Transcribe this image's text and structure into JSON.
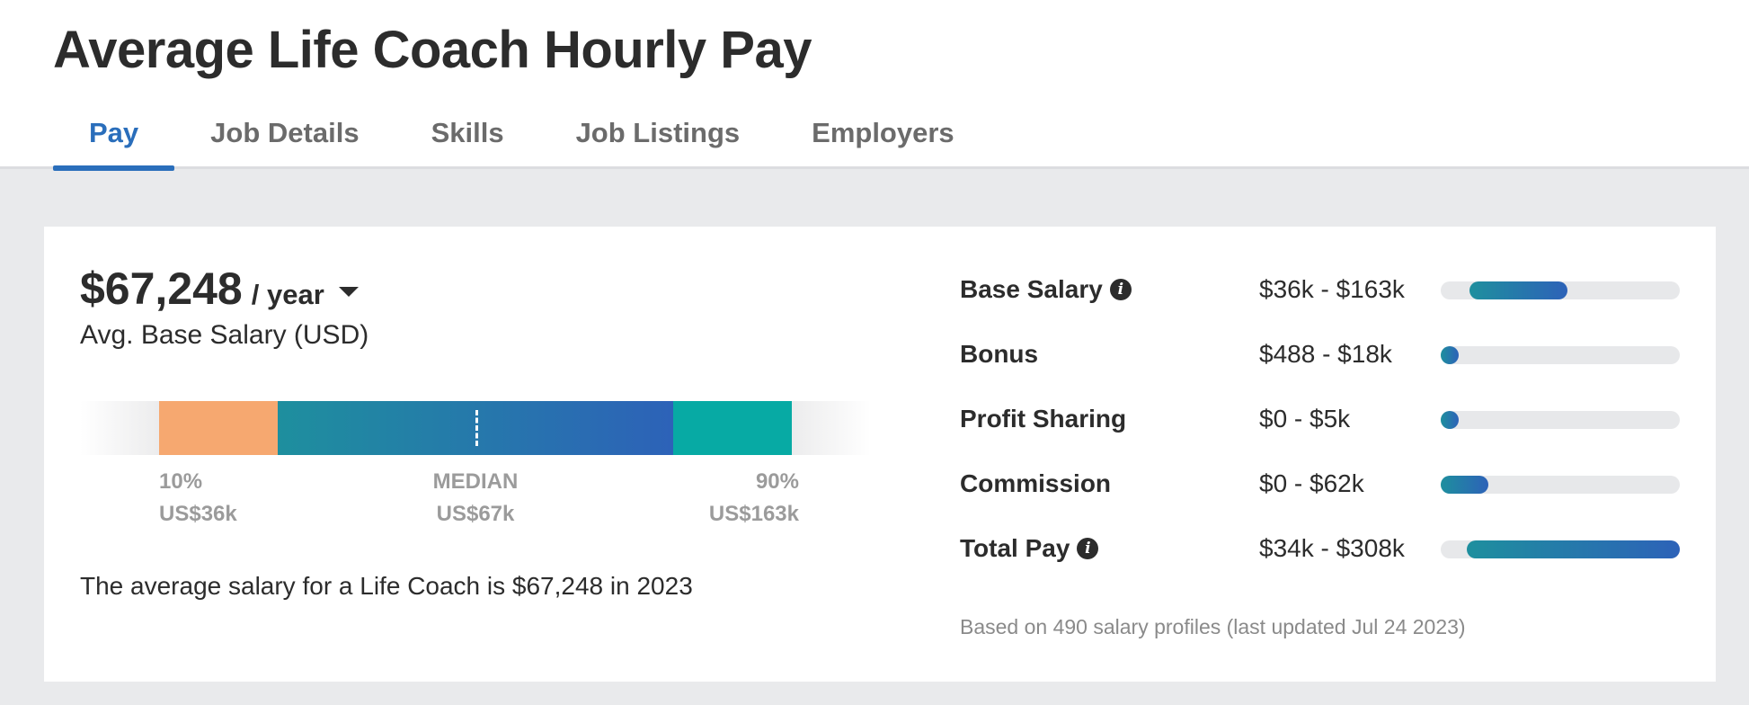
{
  "page": {
    "title": "Average Life Coach Hourly Pay"
  },
  "tabs": [
    {
      "label": "Pay",
      "active": true
    },
    {
      "label": "Job Details",
      "active": false
    },
    {
      "label": "Skills",
      "active": false
    },
    {
      "label": "Job Listings",
      "active": false
    },
    {
      "label": "Employers",
      "active": false
    }
  ],
  "salary": {
    "amount": "$67,248",
    "period": "/ year",
    "label": "Avg. Base Salary (USD)",
    "summary": "The average salary for a Life Coach is $67,248 in 2023"
  },
  "distribution": {
    "p10_label": "10%",
    "p10_value": "US$36k",
    "median_label": "MEDIAN",
    "median_value": "US$67k",
    "p90_label": "90%",
    "p90_value": "US$163k"
  },
  "breakdown": {
    "rows": [
      {
        "label": "Base Salary",
        "info": true,
        "range": "$36k - $163k",
        "bar_start": 0.12,
        "bar_end": 0.53
      },
      {
        "label": "Bonus",
        "info": false,
        "range": "$488 - $18k",
        "bar_start": 0.0,
        "bar_end": 0.06
      },
      {
        "label": "Profit Sharing",
        "info": false,
        "range": "$0 - $5k",
        "bar_start": 0.0,
        "bar_end": 0.05
      },
      {
        "label": "Commission",
        "info": false,
        "range": "$0 - $62k",
        "bar_start": 0.0,
        "bar_end": 0.2
      },
      {
        "label": "Total Pay",
        "info": true,
        "range": "$34k - $308k",
        "bar_start": 0.11,
        "bar_end": 1.0
      }
    ],
    "footnote": "Based on 490 salary profiles (last updated Jul 24 2023)"
  },
  "colors": {
    "accent": "#2a6ebb",
    "p10_segment": "#f6a870",
    "median_gradient_start": "#1e8f9e",
    "median_gradient_end": "#2d62b8",
    "p90_segment": "#07aaa4"
  },
  "icons": {
    "info": "info-icon",
    "period_dropdown": "caret-down-icon"
  }
}
